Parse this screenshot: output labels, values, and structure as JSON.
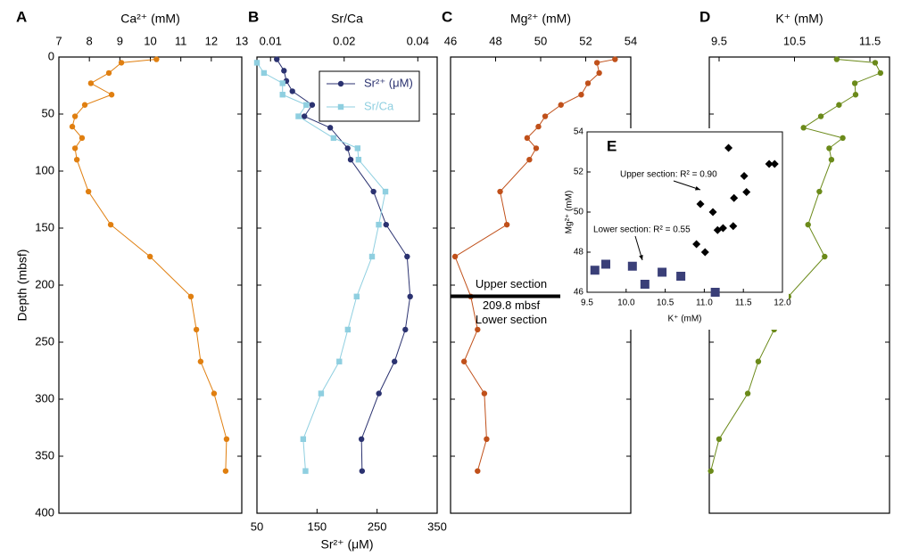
{
  "chart_data": [
    {
      "type": "line",
      "panel": "A",
      "xlabel": "Ca²⁺ (mM)",
      "x_axis_position": "top",
      "xlim": [
        7,
        13
      ],
      "xticks": [
        7,
        8,
        9,
        10,
        11,
        12,
        13
      ],
      "ylabel": "Depth (mbsf)",
      "ylim": [
        0,
        400
      ],
      "y_inverted": true,
      "yticks": [
        0,
        50,
        100,
        150,
        200,
        250,
        300,
        350,
        400
      ],
      "series": [
        {
          "color": "#e07f10",
          "marker": "circle",
          "depth": [
            2,
            5,
            14,
            23,
            33,
            42,
            52,
            61,
            71,
            80,
            90,
            118,
            147,
            175,
            210,
            239,
            267,
            295,
            335,
            363
          ],
          "values": [
            10.2,
            9.05,
            8.64,
            8.05,
            8.73,
            7.85,
            7.53,
            7.44,
            7.76,
            7.53,
            7.59,
            7.97,
            8.7,
            9.99,
            11.33,
            11.51,
            11.65,
            12.09,
            12.5,
            12.47
          ]
        }
      ]
    },
    {
      "type": "line",
      "panel": "B",
      "xlabel": "Sr²⁺ (μM)",
      "x_axis_position": "bottom",
      "xlim": [
        50,
        350
      ],
      "xticks": [
        50,
        150,
        250,
        350
      ],
      "x2label": "Sr/Ca",
      "x2lim": [
        0.0088,
        0.048
      ],
      "x2log": true,
      "x2ticks": [
        0.01,
        0.02,
        0.04
      ],
      "ylim": [
        0,
        400
      ],
      "y_inverted": true,
      "legend": "upper right",
      "series": [
        {
          "name": "Sr²⁺ (μM)",
          "color": "#2b3270",
          "marker": "circle",
          "depth": [
            2,
            12,
            21,
            30,
            42,
            52,
            62,
            80,
            90,
            118,
            147,
            175,
            210,
            239,
            267,
            295,
            335,
            363
          ],
          "values": [
            83,
            95,
            99,
            109,
            142,
            129,
            172,
            201,
            206,
            244,
            265,
            300,
            305,
            297,
            279,
            253,
            224,
            225
          ]
        },
        {
          "name": "Sr/Ca",
          "color": "#8fcfe0",
          "marker": "square",
          "axis": "x2",
          "depth": [
            5,
            14,
            23,
            33,
            42,
            52,
            71,
            80,
            90,
            118,
            147,
            175,
            210,
            239,
            267,
            295,
            335,
            363
          ],
          "values": [
            0.0088,
            0.0094,
            0.0112,
            0.0112,
            0.014,
            0.013,
            0.0181,
            0.0227,
            0.0229,
            0.0295,
            0.0277,
            0.026,
            0.0225,
            0.0207,
            0.0191,
            0.0161,
            0.0136,
            0.0139
          ]
        }
      ]
    },
    {
      "type": "line",
      "panel": "C",
      "xlabel": "Mg²⁺ (mM)",
      "x_axis_position": "top",
      "xlim": [
        46,
        54
      ],
      "xticks": [
        46,
        48,
        50,
        52,
        54
      ],
      "ylim": [
        0,
        400
      ],
      "y_inverted": true,
      "boundary_depth": 209.8,
      "annotations": [
        "Upper section",
        "209.8 mbsf",
        "Lower section"
      ],
      "series": [
        {
          "color": "#c0501a",
          "marker": "circle",
          "depth": [
            2,
            5,
            14,
            23,
            33,
            42,
            52,
            61,
            71,
            80,
            90,
            118,
            147,
            175,
            210,
            239,
            267,
            295,
            335,
            363
          ],
          "values": [
            53.3,
            52.5,
            52.6,
            52.1,
            51.8,
            50.9,
            50.2,
            49.9,
            49.4,
            49.8,
            49.5,
            48.2,
            48.5,
            46.2,
            46.9,
            47.2,
            46.6,
            47.5,
            47.6,
            47.2
          ]
        }
      ]
    },
    {
      "type": "line",
      "panel": "D",
      "xlabel": "K⁺ (mM)",
      "x_axis_position": "top",
      "xlim": [
        9.37,
        11.76
      ],
      "xticks": [
        9.5,
        10.5,
        11.5
      ],
      "ylim": [
        0,
        400
      ],
      "y_inverted": true,
      "series": [
        {
          "color": "#6b8a1a",
          "marker": "circle",
          "depth": [
            2,
            5,
            14,
            23,
            33,
            42,
            52,
            62,
            71,
            80,
            90,
            118,
            147,
            175,
            210,
            239,
            267,
            295,
            335,
            363
          ],
          "values": [
            11.06,
            11.57,
            11.64,
            11.3,
            11.31,
            11.09,
            10.85,
            10.62,
            11.14,
            10.96,
            10.99,
            10.83,
            10.68,
            10.9,
            10.42,
            10.23,
            10.02,
            9.88,
            9.5,
            9.39
          ]
        }
      ]
    },
    {
      "type": "scatter",
      "panel": "E",
      "xlabel": "K⁺ (mM)",
      "ylabel": "Mg²⁺ (mM)",
      "xlim": [
        9.5,
        12
      ],
      "xticks": [
        9.5,
        {
          "value": 10,
          "label": "10.0"
        },
        10.5,
        {
          "value": 11,
          "label": "11.0"
        },
        11.5,
        {
          "value": 12,
          "label": "12.0"
        }
      ],
      "ylim": [
        46,
        54
      ],
      "yticks": [
        46,
        48,
        50,
        52,
        54
      ],
      "annotations": [
        "Upper section:  R² = 0.90",
        "Lower section:  R² = 0.55"
      ],
      "series": [
        {
          "color": "#000000",
          "marker": "diamond",
          "x": [
            11.31,
            11.83,
            11.9,
            11.51,
            11.54,
            11.38,
            10.95,
            11.11,
            11.37,
            11.24,
            11.17,
            10.9,
            11.01
          ],
          "values": [
            53.2,
            52.4,
            52.4,
            51.8,
            51,
            50.7,
            50.4,
            50,
            49.3,
            49.2,
            49.1,
            48.4,
            48
          ]
        },
        {
          "color": "#3a3f78",
          "marker": "square",
          "x": [
            9.6,
            9.74,
            10.08,
            10.24,
            10.46,
            10.7,
            11.14
          ],
          "values": [
            47.1,
            47.4,
            47.3,
            46.4,
            47,
            46.8,
            46
          ]
        }
      ]
    }
  ]
}
